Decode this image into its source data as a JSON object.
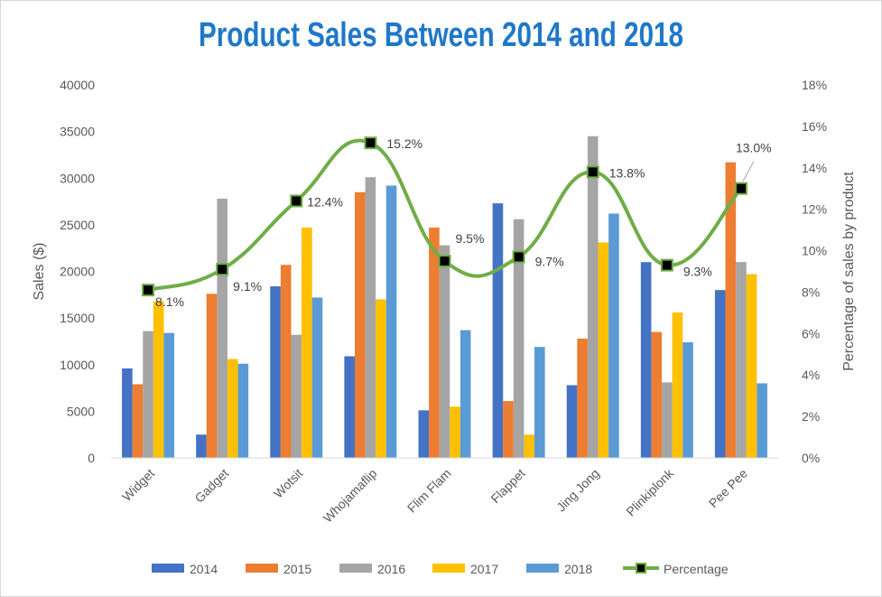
{
  "chart_data": {
    "type": "bar",
    "title": "Product Sales Between 2014 and 2018",
    "xlabel": "",
    "ylabel": "Sales ($)",
    "y2label": "Percentage of sales by product",
    "ylim": [
      0,
      40000
    ],
    "y2lim": [
      0,
      18
    ],
    "yticks": [
      "0",
      "5000",
      "10000",
      "15000",
      "20000",
      "25000",
      "30000",
      "35000",
      "40000"
    ],
    "y2ticks": [
      "0%",
      "2%",
      "4%",
      "6%",
      "8%",
      "10%",
      "12%",
      "14%",
      "16%",
      "18%"
    ],
    "categories": [
      "Widget",
      "Gadget",
      "Wotsit",
      "Whojamaflip",
      "Flim Flam",
      "Flappet",
      "Jing Jong",
      "Plinkiplonk",
      "Pee Pee"
    ],
    "series": [
      {
        "name": "2014",
        "type": "bar",
        "color": "#4472c4",
        "values": [
          9600,
          2500,
          18400,
          10900,
          5100,
          27300,
          7800,
          21000,
          18000
        ]
      },
      {
        "name": "2015",
        "type": "bar",
        "color": "#ed7d31",
        "values": [
          7900,
          17600,
          20700,
          28500,
          24700,
          6100,
          12800,
          13500,
          31700
        ]
      },
      {
        "name": "2016",
        "type": "bar",
        "color": "#a5a5a5",
        "values": [
          13600,
          27800,
          13200,
          30100,
          22800,
          25600,
          34500,
          8100,
          21000
        ]
      },
      {
        "name": "2017",
        "type": "bar",
        "color": "#ffc000",
        "values": [
          16800,
          10600,
          24700,
          17000,
          5500,
          2500,
          23100,
          15600,
          19700
        ]
      },
      {
        "name": "2018",
        "type": "bar",
        "color": "#5b9bd5",
        "values": [
          13400,
          10100,
          17200,
          29200,
          13700,
          11900,
          26200,
          12400,
          8000
        ]
      },
      {
        "name": "Percentage",
        "type": "line",
        "axis": "secondary",
        "color": "#70ad47",
        "marker_color": "#000000",
        "values": [
          8.1,
          9.1,
          12.4,
          15.2,
          9.5,
          9.7,
          13.8,
          9.3,
          13.0
        ],
        "labels": [
          "8.1%",
          "9.1%",
          "12.4%",
          "15.2%",
          "9.5%",
          "9.7%",
          "13.8%",
          "9.3%",
          "13.0%"
        ]
      }
    ],
    "grid": false,
    "legend": "bottom"
  }
}
